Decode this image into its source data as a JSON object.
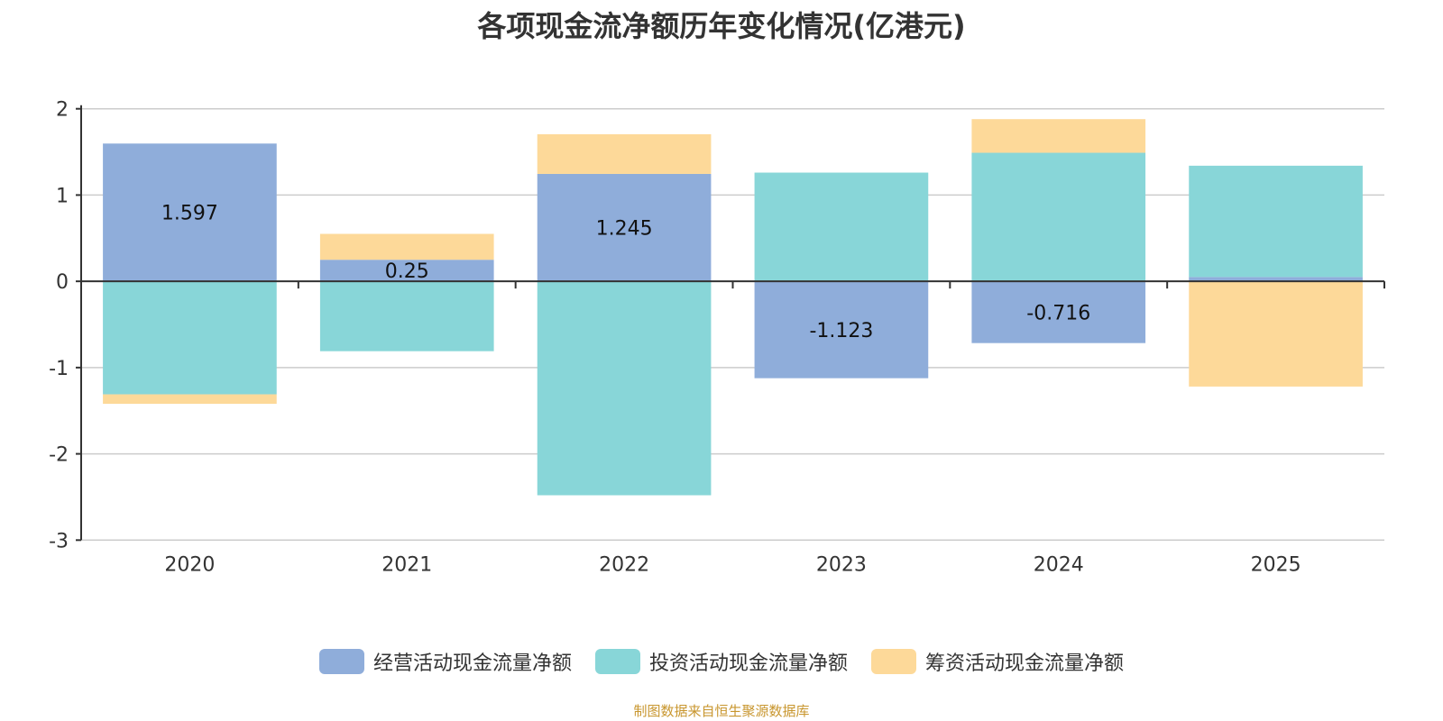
{
  "title": "各项现金流净额历年变化情况(亿港元)",
  "source": "制图数据来自恒生聚源数据库",
  "chart_data": {
    "type": "bar",
    "stacked": true,
    "categories": [
      "2020",
      "2021",
      "2022",
      "2023",
      "2024",
      "2025"
    ],
    "ylim": [
      -3,
      2
    ],
    "yticks": [
      "2",
      "1",
      "0",
      "-1",
      "-2",
      "-3"
    ],
    "grid": true,
    "legend_position": "bottom",
    "series": [
      {
        "name": "经营活动现金流量净额",
        "color": "#8fadda",
        "values": [
          1.597,
          0.25,
          1.245,
          -1.123,
          -0.716,
          0.05
        ],
        "labels": [
          "1.597",
          "0.25",
          "1.245",
          "-1.123",
          "-0.716",
          ""
        ]
      },
      {
        "name": "投资活动现金流量净额",
        "color": "#88d6d8",
        "values": [
          -1.31,
          -0.81,
          -2.48,
          1.26,
          1.49,
          1.29
        ]
      },
      {
        "name": "筹资活动现金流量净额",
        "color": "#fdd999",
        "values": [
          -0.11,
          0.3,
          0.46,
          0,
          0.39,
          -1.22
        ]
      }
    ]
  }
}
